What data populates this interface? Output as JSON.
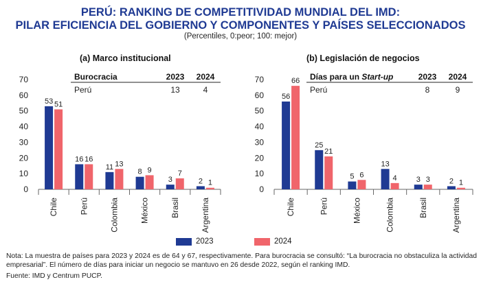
{
  "header": {
    "title_line1": "PERÚ: RANKING DE COMPETITIVIDAD MUNDIAL DEL IMD:",
    "title_line2": "PILAR EFICIENCIA DEL GOBIERNO Y COMPONENTES Y PAÍSES SELECCIONADOS",
    "subtitle": "(Percentiles, 0:peor; 100: mejor)"
  },
  "colors": {
    "y2023": "#1f3a93",
    "y2024": "#f0656b",
    "title": "#1f3a93"
  },
  "legend": {
    "label_2023": "2023",
    "label_2024": "2024"
  },
  "chart_data": [
    {
      "type": "bar",
      "title": "(a) Marco institucional",
      "categories": [
        "Chile",
        "Perú",
        "Colombia",
        "México",
        "Brasil",
        "Argentina"
      ],
      "series": [
        {
          "name": "2023",
          "values": [
            53,
            16,
            11,
            8,
            3,
            2
          ]
        },
        {
          "name": "2024",
          "values": [
            51,
            16,
            13,
            9,
            7,
            1
          ]
        }
      ],
      "ylim": [
        0,
        70
      ],
      "yticks": [
        0,
        10,
        20,
        30,
        40,
        50,
        60,
        70
      ],
      "inset_table": {
        "header": [
          "Burocracia",
          "2023",
          "2024"
        ],
        "header_italic": "",
        "rows": [
          [
            "Perú",
            "13",
            "4"
          ]
        ]
      }
    },
    {
      "type": "bar",
      "title": "(b) Legislación de negocios",
      "categories": [
        "Chile",
        "Perú",
        "México",
        "Colombia",
        "Brasil",
        "Argentina"
      ],
      "series": [
        {
          "name": "2023",
          "values": [
            56,
            25,
            5,
            13,
            3,
            2
          ]
        },
        {
          "name": "2024",
          "values": [
            66,
            21,
            6,
            4,
            3,
            1
          ]
        }
      ],
      "ylim": [
        0,
        70
      ],
      "yticks": [
        0,
        10,
        20,
        30,
        40,
        50,
        60,
        70
      ],
      "inset_table": {
        "header": [
          "Días para un ",
          "2023",
          "2024"
        ],
        "header_italic": "Start-up",
        "rows": [
          [
            "Perú",
            "8",
            "9"
          ]
        ]
      }
    }
  ],
  "footer": {
    "note": "Nota: La muestra de países para 2023 y 2024 es de 64 y 67, respectivamente. Para burocracia se consultó: “La burocracia no obstaculiza la actividad empresarial”. El número de días para iniciar un negocio se mantuvo en 26 desde 2022, según el ranking IMD.",
    "source": "Fuente: IMD y Centrum PUCP."
  }
}
